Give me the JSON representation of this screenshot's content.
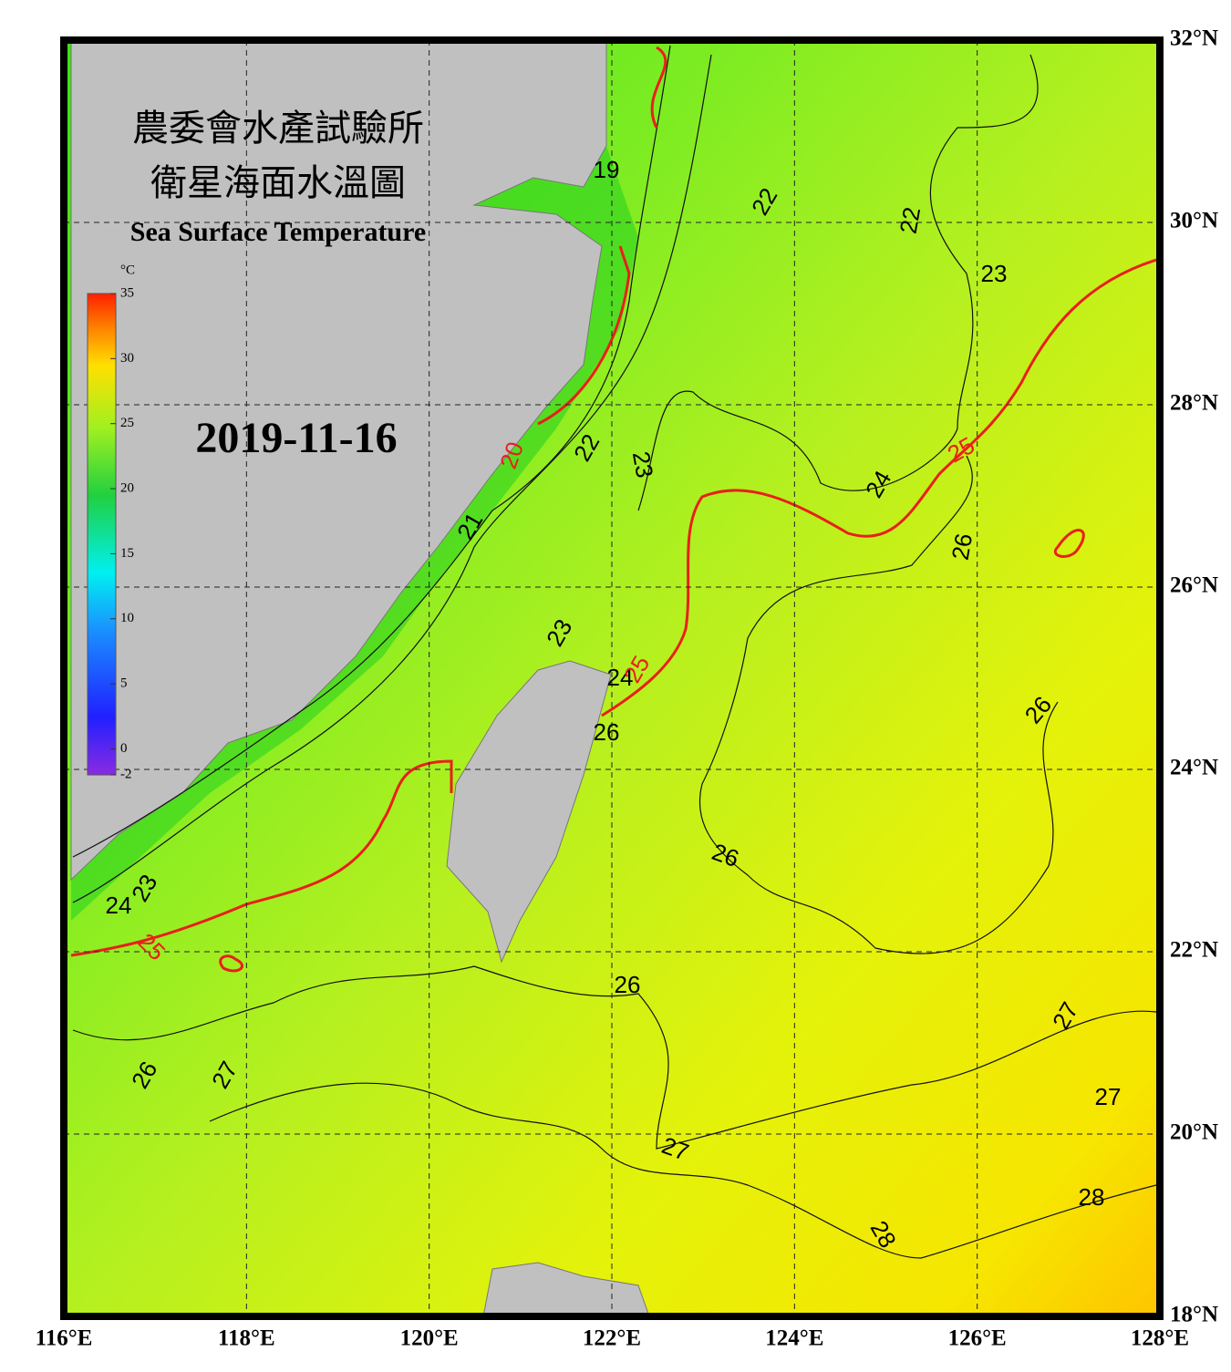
{
  "title_zh": [
    "農委會水產試驗所",
    "衛星海面水溫圖"
  ],
  "title_en": "Sea Surface Temperature",
  "date": "2019-11-16",
  "colorbar": {
    "unit": "°C",
    "range": [
      -2,
      35
    ],
    "ticks": [
      35,
      30,
      25,
      20,
      15,
      10,
      5,
      0,
      -2
    ]
  },
  "map": {
    "xlim": [
      116,
      128
    ],
    "ylim": [
      18,
      32
    ],
    "xticks": [
      {
        "value": 116,
        "label": "116°E"
      },
      {
        "value": 118,
        "label": "118°E"
      },
      {
        "value": 120,
        "label": "120°E"
      },
      {
        "value": 122,
        "label": "122°E"
      },
      {
        "value": 124,
        "label": "124°E"
      },
      {
        "value": 126,
        "label": "126°E"
      },
      {
        "value": 128,
        "label": "128°E"
      }
    ],
    "yticks": [
      {
        "value": 32,
        "label": "32°N"
      },
      {
        "value": 30,
        "label": "30°N"
      },
      {
        "value": 28,
        "label": "28°N"
      },
      {
        "value": 26,
        "label": "26°N"
      },
      {
        "value": 24,
        "label": "24°N"
      },
      {
        "value": 22,
        "label": "22°N"
      },
      {
        "value": 20,
        "label": "20°N"
      },
      {
        "value": 18,
        "label": "18°N"
      }
    ],
    "contour_labels": [
      19,
      22,
      22,
      23,
      20,
      22,
      23,
      24,
      25,
      21,
      26,
      23,
      24,
      25,
      26,
      26,
      26,
      23,
      24,
      25,
      26,
      27,
      26,
      27,
      27,
      27,
      28,
      28
    ]
  }
}
